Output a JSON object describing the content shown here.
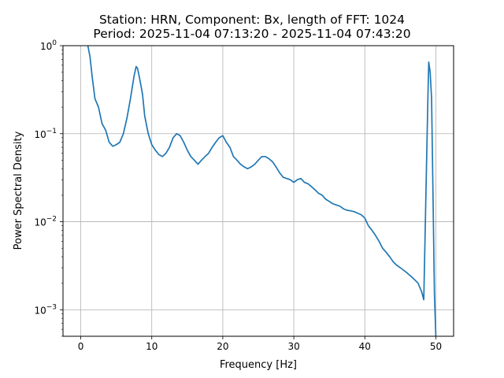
{
  "chart_data": {
    "type": "line",
    "title": "Station: HRN, Component: Bx, length of FFT: 1024",
    "subtitle": "Period: 2025-11-04 07:13:20 - 2025-11-04 07:43:20",
    "xlabel": "Frequency [Hz]",
    "ylabel": "Power Spectral Density",
    "xlim": [
      -2.5,
      52.5
    ],
    "ylim": [
      0.0005,
      1
    ],
    "yscale": "log",
    "grid": true,
    "x_ticks": [
      0,
      10,
      20,
      30,
      40,
      50
    ],
    "x_tick_labels": [
      "0",
      "10",
      "20",
      "30",
      "40",
      "50"
    ],
    "y_ticks": [
      0.001,
      0.01,
      0.1,
      1
    ],
    "y_tick_labels": [
      {
        "base": "10",
        "exp": "−3"
      },
      {
        "base": "10",
        "exp": "−2"
      },
      {
        "base": "10",
        "exp": "−1"
      },
      {
        "base": "10",
        "exp": "0"
      }
    ],
    "line_color": "#1f77b4",
    "series": [
      {
        "x": [
          1.0,
          1.3,
          1.6,
          2.0,
          2.5,
          3.0,
          3.5,
          4.0,
          4.5,
          5.0,
          5.5,
          6.0,
          6.5,
          7.0,
          7.5,
          7.8,
          8.0,
          8.3,
          8.7,
          9.0,
          9.5,
          10.0,
          10.5,
          11.0,
          11.5,
          12.0,
          12.5,
          13.0,
          13.5,
          14.0,
          14.5,
          15.0,
          15.5,
          16.0,
          16.5,
          17.0,
          17.5,
          18.0,
          18.5,
          19.0,
          19.5,
          20.0,
          20.5,
          21.0,
          21.5,
          22.0,
          22.5,
          23.0,
          23.5,
          24.0,
          24.5,
          25.0,
          25.5,
          26.0,
          26.5,
          27.0,
          27.5,
          28.0,
          28.5,
          29.0,
          29.5,
          30.0,
          30.5,
          31.0,
          31.5,
          32.0,
          32.5,
          33.0,
          33.5,
          34.0,
          34.5,
          35.0,
          35.5,
          36.0,
          36.5,
          37.0,
          37.5,
          38.0,
          38.5,
          39.0,
          39.5,
          40.0,
          40.5,
          41.0,
          41.5,
          42.0,
          42.5,
          43.0,
          43.5,
          44.0,
          44.5,
          45.0,
          45.5,
          46.0,
          46.5,
          47.0,
          47.5,
          48.0,
          48.3,
          48.5,
          48.7,
          48.9,
          49.0,
          49.2,
          49.4,
          49.6,
          49.8,
          50.0
        ],
        "y": [
          1.0,
          0.75,
          0.45,
          0.25,
          0.2,
          0.13,
          0.11,
          0.08,
          0.072,
          0.075,
          0.08,
          0.1,
          0.15,
          0.25,
          0.45,
          0.58,
          0.55,
          0.42,
          0.28,
          0.16,
          0.1,
          0.075,
          0.065,
          0.058,
          0.055,
          0.06,
          0.07,
          0.09,
          0.1,
          0.095,
          0.08,
          0.065,
          0.055,
          0.05,
          0.045,
          0.05,
          0.055,
          0.06,
          0.07,
          0.08,
          0.09,
          0.095,
          0.08,
          0.07,
          0.055,
          0.05,
          0.045,
          0.042,
          0.04,
          0.042,
          0.045,
          0.05,
          0.055,
          0.055,
          0.052,
          0.048,
          0.042,
          0.036,
          0.032,
          0.031,
          0.03,
          0.028,
          0.03,
          0.031,
          0.028,
          0.027,
          0.025,
          0.023,
          0.021,
          0.02,
          0.018,
          0.017,
          0.016,
          0.0155,
          0.015,
          0.014,
          0.0135,
          0.0133,
          0.013,
          0.0125,
          0.012,
          0.011,
          0.009,
          0.008,
          0.007,
          0.006,
          0.005,
          0.0045,
          0.004,
          0.0035,
          0.0032,
          0.003,
          0.0028,
          0.0026,
          0.0024,
          0.0022,
          0.002,
          0.0016,
          0.0013,
          0.008,
          0.05,
          0.3,
          0.65,
          0.5,
          0.25,
          0.02,
          0.0015,
          0.0005
        ]
      }
    ]
  }
}
